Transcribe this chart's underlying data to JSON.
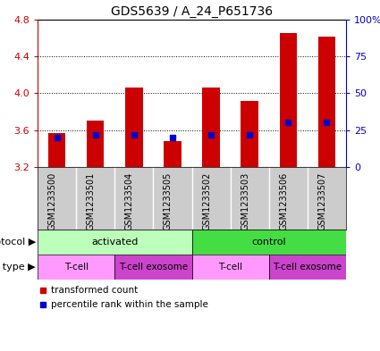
{
  "title": "GDS5639 / A_24_P651736",
  "samples": [
    "GSM1233500",
    "GSM1233501",
    "GSM1233504",
    "GSM1233505",
    "GSM1233502",
    "GSM1233503",
    "GSM1233506",
    "GSM1233507"
  ],
  "transformed_counts": [
    3.57,
    3.7,
    4.06,
    3.48,
    4.06,
    3.92,
    4.65,
    4.62
  ],
  "percentile_ranks": [
    20,
    22,
    22,
    20,
    22,
    22,
    30,
    30
  ],
  "ylim": [
    3.2,
    4.8
  ],
  "yticks_left": [
    3.2,
    3.6,
    4.0,
    4.4,
    4.8
  ],
  "yticks_right": [
    0,
    25,
    50,
    75,
    100
  ],
  "bar_color": "#cc0000",
  "dot_color": "#0000cc",
  "bar_bottom": 3.2,
  "protocol_groups": [
    {
      "label": "activated",
      "span": [
        0,
        4
      ],
      "color": "#bbffbb"
    },
    {
      "label": "control",
      "span": [
        4,
        8
      ],
      "color": "#44dd44"
    }
  ],
  "cell_type_groups": [
    {
      "label": "T-cell",
      "span": [
        0,
        2
      ],
      "color": "#ff99ff"
    },
    {
      "label": "T-cell exosome",
      "span": [
        2,
        4
      ],
      "color": "#cc44cc"
    },
    {
      "label": "T-cell",
      "span": [
        4,
        6
      ],
      "color": "#ff99ff"
    },
    {
      "label": "T-cell exosome",
      "span": [
        6,
        8
      ],
      "color": "#cc44cc"
    }
  ],
  "sample_bg_color": "#cccccc",
  "legend_items": [
    {
      "label": "transformed count",
      "color": "#cc0000"
    },
    {
      "label": "percentile rank within the sample",
      "color": "#0000cc"
    }
  ],
  "protocol_label": "protocol",
  "cell_type_label": "cell type",
  "left_axis_color": "#cc0000",
  "right_axis_color": "#0000cc",
  "title_fontsize": 10,
  "tick_fontsize": 8,
  "label_fontsize": 8,
  "sample_fontsize": 7
}
